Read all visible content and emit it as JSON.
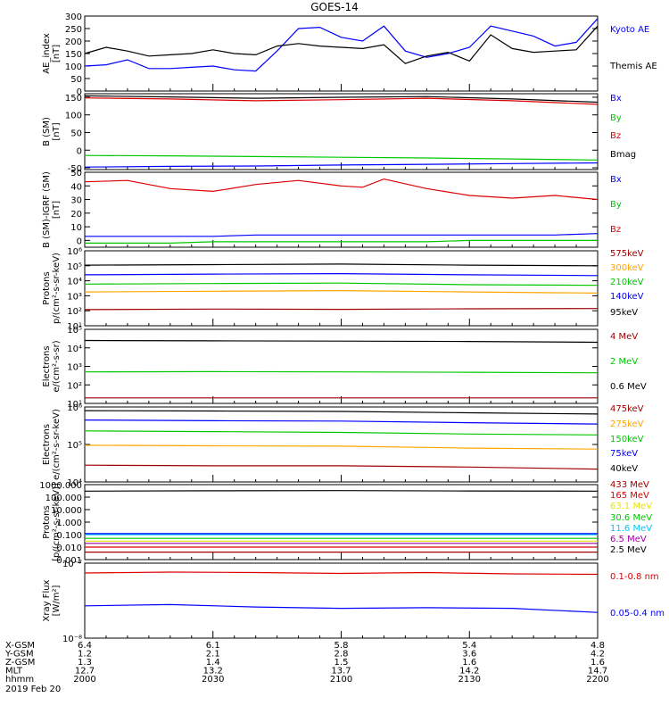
{
  "title": "GOES-14",
  "colors": {
    "black": "#000000",
    "blue": "#0000ff",
    "green": "#00c800",
    "red": "#dc0000",
    "orange": "#ffa500",
    "maroon": "#a00000",
    "yellow": "#e6e600",
    "cyan": "#00c8ff",
    "purple": "#a000a0"
  },
  "chart_data": [
    {
      "type": "line",
      "ylabel": [
        "AE_index",
        "[nT]"
      ],
      "ylim": [
        0,
        300
      ],
      "y_ticks": [
        "0",
        "50",
        "100",
        "150",
        "200",
        "250",
        "300"
      ],
      "x": [
        2000,
        2005,
        2010,
        2015,
        2020,
        2025,
        2030,
        2035,
        2040,
        2045,
        2050,
        2055,
        2100,
        2105,
        2110,
        2115,
        2120,
        2125,
        2130,
        2135,
        2140,
        2145,
        2150,
        2155,
        2200
      ],
      "series": [
        {
          "name": "Kyoto AE",
          "color": "blue",
          "values": [
            100,
            105,
            125,
            90,
            90,
            95,
            100,
            85,
            80,
            160,
            250,
            255,
            215,
            200,
            260,
            160,
            135,
            150,
            175,
            260,
            240,
            220,
            180,
            195,
            290
          ]
        },
        {
          "name": "Themis AE",
          "color": "black",
          "values": [
            150,
            175,
            160,
            140,
            145,
            150,
            165,
            150,
            145,
            180,
            190,
            180,
            175,
            170,
            185,
            110,
            140,
            155,
            120,
            225,
            170,
            155,
            160,
            165,
            260
          ]
        }
      ]
    },
    {
      "type": "line",
      "ylabel": [
        "B (SM)",
        "[nT]"
      ],
      "ylim": [
        -55,
        160
      ],
      "y_ticks": [
        "-50",
        "0",
        "50",
        "100",
        "150"
      ],
      "x": [
        2000,
        2020,
        2040,
        2100,
        2120,
        2140,
        2200
      ],
      "series": [
        {
          "name": "Bx",
          "color": "blue",
          "values": [
            -48,
            -46,
            -45,
            -42,
            -40,
            -38,
            -36
          ]
        },
        {
          "name": "By",
          "color": "green",
          "values": [
            -15,
            -16,
            -18,
            -20,
            -22,
            -25,
            -28
          ]
        },
        {
          "name": "Bz",
          "color": "red",
          "values": [
            148,
            145,
            140,
            143,
            147,
            140,
            130
          ]
        },
        {
          "name": "Bmag",
          "color": "black",
          "values": [
            154,
            151,
            147,
            150,
            152,
            145,
            136
          ]
        }
      ]
    },
    {
      "type": "line",
      "ylabel": [
        "B (SM)-IGRF (SM)",
        "[nT]"
      ],
      "ylim": [
        -5,
        50
      ],
      "y_ticks": [
        "0",
        "10",
        "20",
        "30",
        "40",
        "50"
      ],
      "x": [
        2000,
        2010,
        2020,
        2030,
        2040,
        2050,
        2100,
        2105,
        2110,
        2120,
        2130,
        2140,
        2150,
        2200
      ],
      "series": [
        {
          "name": "Bx",
          "color": "blue",
          "values": [
            3,
            3,
            3,
            3,
            4,
            4,
            4,
            4,
            4,
            4,
            4,
            4,
            4,
            5
          ]
        },
        {
          "name": "By",
          "color": "green",
          "values": [
            -2,
            -2,
            -2,
            -1,
            -1,
            -1,
            -1,
            -1,
            -1,
            -1,
            0,
            0,
            0,
            0
          ]
        },
        {
          "name": "Bz",
          "color": "red",
          "values": [
            43,
            44,
            38,
            36,
            41,
            44,
            40,
            39,
            45,
            38,
            33,
            31,
            33,
            30
          ]
        }
      ]
    },
    {
      "type": "line",
      "ylabel": [
        "Protons",
        "p/(cm²-s-sr-keV)"
      ],
      "scale": "log",
      "ylim": [
        10,
        1000000
      ],
      "y_ticks": [
        "10¹",
        "10²",
        "10³",
        "10⁴",
        "10⁵",
        "10⁶"
      ],
      "x": [
        2000,
        2030,
        2100,
        2130,
        2200
      ],
      "series": [
        {
          "name": "575keV",
          "color": "maroon",
          "values": [
            120,
            130,
            125,
            135,
            140
          ]
        },
        {
          "name": "300keV",
          "color": "orange",
          "values": [
            1800,
            2000,
            2200,
            1800,
            1500
          ]
        },
        {
          "name": "210keV",
          "color": "green",
          "values": [
            6000,
            6500,
            7000,
            5500,
            5000
          ]
        },
        {
          "name": "140keV",
          "color": "blue",
          "values": [
            25000,
            28000,
            30000,
            25000,
            22000
          ]
        },
        {
          "name": "95keV",
          "color": "black",
          "values": [
            110000,
            120000,
            130000,
            110000,
            100000
          ]
        }
      ]
    },
    {
      "type": "line",
      "ylabel": [
        "Electrons",
        "e/(cm²-s-sr)"
      ],
      "scale": "log",
      "ylim": [
        10,
        100000
      ],
      "y_ticks": [
        "10¹",
        "10²",
        "10³",
        "10⁴",
        "10⁵"
      ],
      "x": [
        2000,
        2030,
        2100,
        2130,
        2200
      ],
      "series": [
        {
          "name": "4 MeV",
          "color": "maroon",
          "values": [
            20,
            20,
            20,
            20,
            20
          ]
        },
        {
          "name": "2 MeV",
          "color": "green",
          "values": [
            500,
            520,
            500,
            480,
            450
          ]
        },
        {
          "name": "0.6 MeV",
          "color": "black",
          "values": [
            25000,
            24000,
            23000,
            22000,
            20000
          ]
        }
      ]
    },
    {
      "type": "line",
      "ylabel": [
        "Electrons",
        "e/(cm²-s-sr-keV)"
      ],
      "scale": "log",
      "ylim": [
        10000,
        1000000
      ],
      "y_ticks": [
        "10⁴",
        "10⁵",
        "10⁶"
      ],
      "x": [
        2000,
        2030,
        2100,
        2130,
        2200
      ],
      "series": [
        {
          "name": "475keV",
          "color": "maroon",
          "values": [
            28000,
            27000,
            27000,
            25000,
            22000
          ]
        },
        {
          "name": "275keV",
          "color": "orange",
          "values": [
            95000,
            92000,
            90000,
            80000,
            75000
          ]
        },
        {
          "name": "150keV",
          "color": "green",
          "values": [
            230000,
            220000,
            210000,
            190000,
            180000
          ]
        },
        {
          "name": "75keV",
          "color": "blue",
          "values": [
            450000,
            430000,
            420000,
            380000,
            350000
          ]
        },
        {
          "name": "40keV",
          "color": "black",
          "values": [
            800000,
            780000,
            760000,
            700000,
            650000
          ]
        }
      ]
    },
    {
      "type": "line",
      "ylabel": [
        "Protons",
        "[p/(cm²-s-sr-keV)]"
      ],
      "scale": "log",
      "ylim": [
        0.001,
        1000
      ],
      "y_ticks": [
        "0.001",
        "0.010",
        "0.100",
        "1.000",
        "10.000",
        "100.000",
        "1000.000"
      ],
      "x": [
        2000,
        2030,
        2100,
        2130,
        2200
      ],
      "series": [
        {
          "name": "433 MeV",
          "color": "maroon",
          "values": [
            0.004,
            0.004,
            0.004,
            0.004,
            0.004
          ]
        },
        {
          "name": "165 MeV",
          "color": "red",
          "values": [
            0.01,
            0.01,
            0.01,
            0.01,
            0.01
          ]
        },
        {
          "name": "63.1 MeV",
          "color": "yellow",
          "values": [
            0.03,
            0.03,
            0.03,
            0.03,
            0.03
          ]
        },
        {
          "name": "30.6 MeV",
          "color": "green",
          "values": [
            0.05,
            0.05,
            0.05,
            0.05,
            0.05
          ]
        },
        {
          "name": "11.6 MeV",
          "color": "cyan",
          "values": [
            0.1,
            0.1,
            0.1,
            0.1,
            0.1
          ]
        },
        {
          "name": "6.5 MeV",
          "color": "purple",
          "values": [
            0.02,
            0.02,
            0.02,
            0.02,
            0.02
          ]
        },
        {
          "name": "2.5 MeV",
          "color": "black",
          "values": [
            300,
            320,
            330,
            310,
            300
          ]
        },
        {
          "name": "",
          "color": "blue",
          "values": [
            0.12,
            0.12,
            0.12,
            0.12,
            0.12
          ]
        }
      ]
    },
    {
      "type": "line",
      "ylabel": [
        "Xray Flux",
        "[W/m²]"
      ],
      "scale": "log",
      "ylim": [
        1e-08,
        1e-07
      ],
      "y_ticks": [
        "10⁻⁸",
        "10⁻⁷"
      ],
      "x": [
        2000,
        2020,
        2040,
        2100,
        2120,
        2140,
        2200
      ],
      "series": [
        {
          "name": "0.1-0.8 nm",
          "color": "red",
          "values": [
            7.4e-08,
            7.6e-08,
            7.5e-08,
            7.3e-08,
            7.5e-08,
            7.2e-08,
            7.1e-08
          ]
        },
        {
          "name": "0.05-0.4 nm",
          "color": "blue",
          "values": [
            2.7e-08,
            2.8e-08,
            2.6e-08,
            2.5e-08,
            2.55e-08,
            2.5e-08,
            2.2e-08
          ]
        }
      ]
    }
  ],
  "x_axis": {
    "row_labels": [
      "X-GSM",
      "Y-GSM",
      "Z-GSM",
      "MLT",
      "hhmm"
    ],
    "ticks": [
      {
        "x": 2000,
        "values": [
          "6.4",
          "1.2",
          "1.3",
          "12.7",
          "2000"
        ]
      },
      {
        "x": 2030,
        "values": [
          "6.1",
          "2.1",
          "1.4",
          "13.2",
          "2030"
        ]
      },
      {
        "x": 2100,
        "values": [
          "5.8",
          "2.8",
          "1.5",
          "13.7",
          "2100"
        ]
      },
      {
        "x": 2130,
        "values": [
          "5.4",
          "3.6",
          "1.6",
          "14.2",
          "2130"
        ]
      },
      {
        "x": 2200,
        "values": [
          "4.8",
          "4.2",
          "1.6",
          "14.7",
          "2200"
        ]
      }
    ],
    "date": "2019 Feb 20"
  }
}
